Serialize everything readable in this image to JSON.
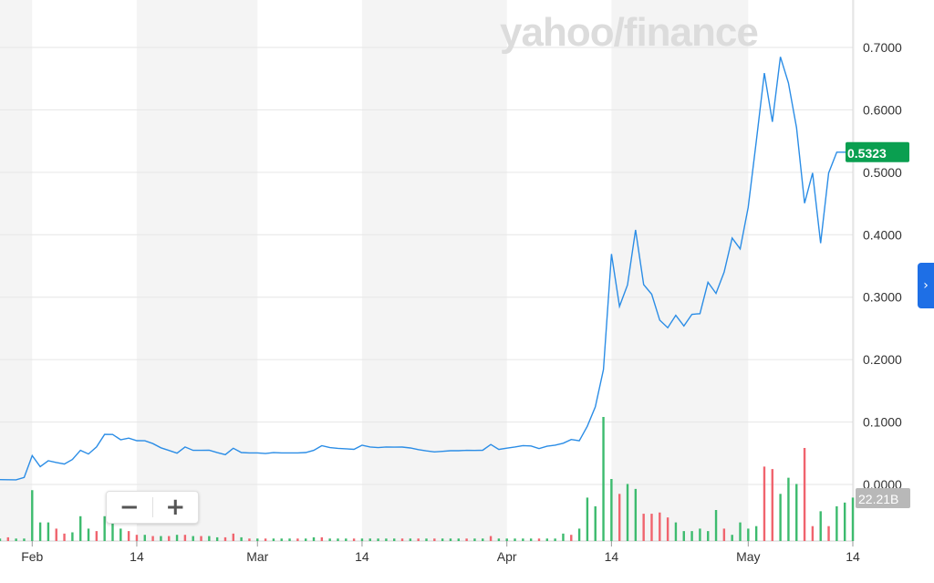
{
  "watermark": "yahoo/finance",
  "zoom": {
    "out_icon": "minus-icon",
    "in_icon": "plus-icon"
  },
  "side_tab_icon": "chevron-right-icon",
  "current_price_label": "0.5323",
  "volume_label": "22.21B",
  "colors": {
    "line": "#2b8de6",
    "badge": "#0a9f50",
    "vol_up": "#3dbb6e",
    "vol_down": "#f0646e",
    "band": "#f4f4f4",
    "grid": "#e6e6e6",
    "vol_badge": "#b8b8b8",
    "accent": "#1e6fe6"
  },
  "chart_data": {
    "type": "line",
    "title": "",
    "xlabel": "",
    "ylabel": "",
    "ylim": [
      -0.05,
      0.78
    ],
    "y_ticks": [
      "0.7000",
      "0.6000",
      "0.5000",
      "0.4000",
      "0.3000",
      "0.2000",
      "0.1000",
      "0.0000"
    ],
    "y_tick_values": [
      0.7,
      0.6,
      0.5,
      0.4,
      0.3,
      0.2,
      0.1,
      0.0
    ],
    "x_tick_labels": [
      "Feb",
      "14",
      "Mar",
      "14",
      "Apr",
      "14",
      "May",
      "14"
    ],
    "x_tick_dates": [
      "2021-02-01",
      "2021-02-14",
      "2021-03-01",
      "2021-03-14",
      "2021-04-01",
      "2021-04-14",
      "2021-05-01",
      "2021-05-14"
    ],
    "x_range": [
      "2021-01-28",
      "2021-05-14"
    ],
    "shaded_bands": [
      [
        "2021-01-28",
        "2021-02-01"
      ],
      [
        "2021-02-14",
        "2021-03-01"
      ],
      [
        "2021-03-14",
        "2021-04-01"
      ],
      [
        "2021-04-14",
        "2021-05-01"
      ],
      [
        "2021-05-14",
        "2021-05-14"
      ]
    ],
    "grid": true,
    "current_price": 0.5323,
    "series": [
      {
        "x": [
          "2021-01-28",
          "2021-01-29",
          "2021-01-30",
          "2021-01-31",
          "2021-02-01",
          "2021-02-02",
          "2021-02-03",
          "2021-02-04",
          "2021-02-05",
          "2021-02-06",
          "2021-02-07",
          "2021-02-08",
          "2021-02-09",
          "2021-02-10",
          "2021-02-11",
          "2021-02-12",
          "2021-02-13",
          "2021-02-14",
          "2021-02-15",
          "2021-02-16",
          "2021-02-17",
          "2021-02-18",
          "2021-02-19",
          "2021-02-20",
          "2021-02-21",
          "2021-02-22",
          "2021-02-23",
          "2021-02-24",
          "2021-02-25",
          "2021-02-26",
          "2021-02-27",
          "2021-02-28",
          "2021-03-01",
          "2021-03-02",
          "2021-03-03",
          "2021-03-04",
          "2021-03-05",
          "2021-03-06",
          "2021-03-07",
          "2021-03-08",
          "2021-03-09",
          "2021-03-10",
          "2021-03-11",
          "2021-03-12",
          "2021-03-13",
          "2021-03-14",
          "2021-03-15",
          "2021-03-16",
          "2021-03-17",
          "2021-03-18",
          "2021-03-19",
          "2021-03-20",
          "2021-03-21",
          "2021-03-22",
          "2021-03-23",
          "2021-03-24",
          "2021-03-25",
          "2021-03-26",
          "2021-03-27",
          "2021-03-28",
          "2021-03-29",
          "2021-03-30",
          "2021-03-31",
          "2021-04-01",
          "2021-04-02",
          "2021-04-03",
          "2021-04-04",
          "2021-04-05",
          "2021-04-06",
          "2021-04-07",
          "2021-04-08",
          "2021-04-09",
          "2021-04-10",
          "2021-04-11",
          "2021-04-12",
          "2021-04-13",
          "2021-04-14",
          "2021-04-15",
          "2021-04-16",
          "2021-04-17",
          "2021-04-18",
          "2021-04-19",
          "2021-04-20",
          "2021-04-21",
          "2021-04-22",
          "2021-04-23",
          "2021-04-24",
          "2021-04-25",
          "2021-04-26",
          "2021-04-27",
          "2021-04-28",
          "2021-04-29",
          "2021-04-30",
          "2021-05-01",
          "2021-05-02",
          "2021-05-03",
          "2021-05-04",
          "2021-05-05",
          "2021-05-06",
          "2021-05-07",
          "2021-05-08",
          "2021-05-09",
          "2021-05-10",
          "2021-05-11",
          "2021-05-12",
          "2021-05-13",
          "2021-05-14"
        ],
        "y": [
          0.0077,
          0.0076,
          0.0074,
          0.0112,
          0.0462,
          0.0285,
          0.038,
          0.0352,
          0.0327,
          0.04,
          0.0546,
          0.0488,
          0.06,
          0.0802,
          0.0801,
          0.0716,
          0.0742,
          0.0701,
          0.07,
          0.0655,
          0.0588,
          0.0545,
          0.0501,
          0.0601,
          0.0546,
          0.0546,
          0.0548,
          0.051,
          0.0478,
          0.058,
          0.0511,
          0.0505,
          0.0505,
          0.0495,
          0.051,
          0.0505,
          0.0505,
          0.0505,
          0.0512,
          0.0546,
          0.0621,
          0.059,
          0.0578,
          0.0571,
          0.0562,
          0.0629,
          0.06,
          0.059,
          0.0601,
          0.0597,
          0.0599,
          0.0585,
          0.0558,
          0.0538,
          0.0521,
          0.053,
          0.0541,
          0.054,
          0.0546,
          0.0545,
          0.0548,
          0.064,
          0.0561,
          0.0581,
          0.06,
          0.0623,
          0.0617,
          0.0574,
          0.0612,
          0.063,
          0.066,
          0.0721,
          0.07,
          0.0932,
          0.1244,
          0.1841,
          0.3692,
          0.2853,
          0.3197,
          0.4077,
          0.32,
          0.3047,
          0.2632,
          0.2511,
          0.2709,
          0.2538,
          0.2725,
          0.2735,
          0.3238,
          0.306,
          0.34,
          0.3947,
          0.3774,
          0.4441,
          0.5502,
          0.659,
          0.5809,
          0.685,
          0.6432,
          0.5714,
          0.4505,
          0.4989,
          0.3865,
          0.4989,
          0.5323,
          0.5323,
          0.5323
        ]
      }
    ],
    "volume": {
      "label": "22.21B",
      "up": [
        true,
        false,
        true,
        true,
        true,
        true,
        true,
        false,
        false,
        true,
        true,
        true,
        false,
        true,
        true,
        true,
        false,
        false,
        true,
        false,
        true,
        false,
        true,
        false,
        true,
        false,
        true,
        true,
        false,
        false,
        true,
        false,
        true,
        false,
        true,
        true,
        true,
        false,
        true,
        true,
        false,
        true,
        true,
        true,
        false,
        true,
        true,
        true,
        true,
        true,
        false,
        true,
        false,
        true,
        false,
        true,
        true,
        true,
        false,
        true,
        true,
        false,
        true,
        true,
        true,
        true,
        true,
        false,
        true,
        true,
        true,
        false,
        true,
        true,
        true,
        true,
        true,
        false,
        true,
        true,
        false,
        false,
        false,
        false,
        true,
        true,
        true,
        true,
        true,
        true,
        false,
        true,
        true,
        true,
        true,
        false,
        false,
        true,
        true,
        true,
        false,
        false,
        true,
        false,
        true,
        true,
        true
      ],
      "relative": [
        0.02,
        0.03,
        0.02,
        0.02,
        0.41,
        0.15,
        0.15,
        0.1,
        0.06,
        0.07,
        0.2,
        0.1,
        0.08,
        0.2,
        0.22,
        0.1,
        0.08,
        0.05,
        0.05,
        0.04,
        0.04,
        0.04,
        0.05,
        0.05,
        0.04,
        0.04,
        0.04,
        0.03,
        0.03,
        0.06,
        0.03,
        0.02,
        0.02,
        0.02,
        0.02,
        0.02,
        0.02,
        0.02,
        0.02,
        0.03,
        0.03,
        0.02,
        0.02,
        0.02,
        0.02,
        0.02,
        0.02,
        0.02,
        0.02,
        0.02,
        0.02,
        0.02,
        0.02,
        0.02,
        0.02,
        0.02,
        0.02,
        0.02,
        0.02,
        0.02,
        0.02,
        0.04,
        0.02,
        0.02,
        0.02,
        0.02,
        0.02,
        0.02,
        0.02,
        0.02,
        0.06,
        0.05,
        0.1,
        0.35,
        0.28,
        1.0,
        0.5,
        0.38,
        0.46,
        0.42,
        0.22,
        0.22,
        0.23,
        0.19,
        0.15,
        0.08,
        0.08,
        0.1,
        0.08,
        0.25,
        0.1,
        0.05,
        0.15,
        0.1,
        0.12,
        0.6,
        0.58,
        0.38,
        0.51,
        0.46,
        0.75,
        0.12,
        0.24,
        0.12,
        0.28,
        0.31,
        0.35
      ]
    }
  }
}
